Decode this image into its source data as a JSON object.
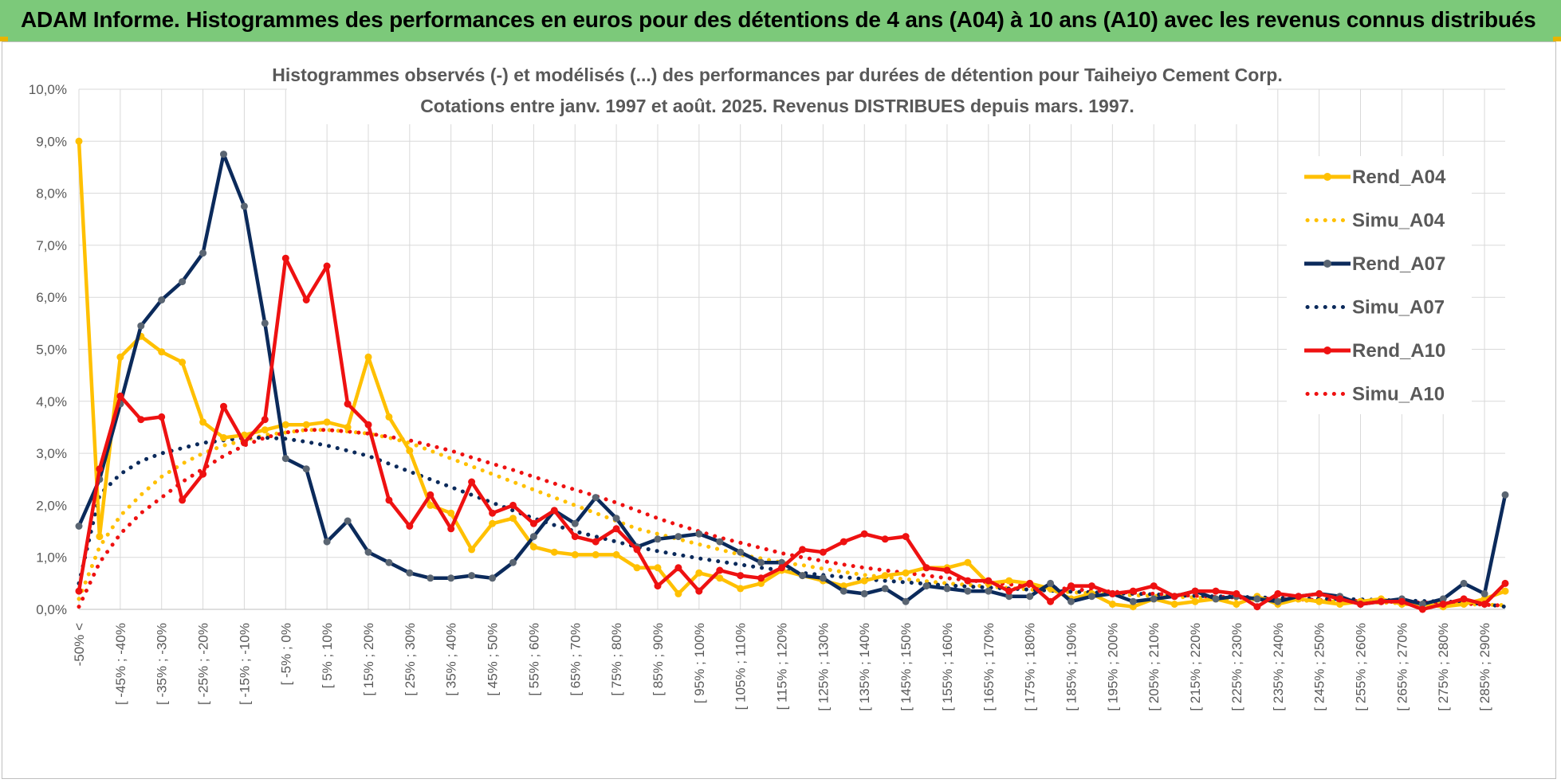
{
  "banner": {
    "title": "ADAM Informe. Histogrammes des performances en euros pour des détentions de 4 ans (A04) à 10 ans (A10) avec les revenus connus distribués"
  },
  "colors": {
    "banner_bg": "#7CC97A",
    "A04": "#FFC000",
    "A07": "#0B2A5B",
    "A07_marker": "#5A6572",
    "A10": "#EE1111",
    "grid": "#D9D9D9"
  },
  "chart_data": {
    "type": "line",
    "title_line1": "Histogrammes observés (-) et modélisés (...) des performances par durées de détention pour Taiheiyo Cement Corp.",
    "title_line2": "Cotations entre janv. 1997 et août. 2025. Revenus DISTRIBUES depuis mars. 1997.",
    "ylim": [
      0,
      10
    ],
    "y_ticks": [
      "0,0%",
      "1,0%",
      "2,0%",
      "3,0%",
      "4,0%",
      "5,0%",
      "6,0%",
      "7,0%",
      "8,0%",
      "9,0%",
      "10,0%"
    ],
    "x_tick_labels": [
      "-50% <",
      "[ -45% ; -40%",
      "[ -35% ; -30%",
      "[ -25% ; -20%",
      "[ -15% ; -10%",
      "[ -5% ; 0%",
      "[ 5% ; 10%",
      "[ 15% ; 20%",
      "[ 25% ; 30%",
      "[ 35% ; 40%",
      "[ 45% ; 50%",
      "[ 55% ; 60%",
      "[ 65% ; 70%",
      "[ 75% ; 80%",
      "[ 85% ; 90%",
      "[ 95% ; 100%",
      "[ 105% ; 110%",
      "[ 115% ; 120%",
      "[ 125% ; 130%",
      "[ 135% ; 140%",
      "[ 145% ; 150%",
      "[ 155% ; 160%",
      "[ 165% ; 170%",
      "[ 175% ; 180%",
      "[ 185% ; 190%",
      "[ 195% ; 200%",
      "[ 205% ; 210%",
      "[ 215% ; 220%",
      "[ 225% ; 230%",
      "[ 235% ; 240%",
      "[ 245% ; 250%",
      "[ 255% ; 260%",
      "[ 265% ; 270%",
      "[ 275% ; 280%",
      "[ 285% ; 290%"
    ],
    "legend_position": "right",
    "grid": true,
    "series": [
      {
        "name": "Rend_A04",
        "style": "solid",
        "color": "#FFC000",
        "values": [
          9.0,
          1.4,
          4.85,
          5.25,
          4.95,
          4.75,
          3.6,
          3.3,
          3.35,
          3.45,
          3.55,
          3.55,
          3.6,
          3.5,
          4.85,
          3.7,
          3.05,
          2.0,
          1.85,
          1.15,
          1.65,
          1.75,
          1.2,
          1.1,
          1.05,
          1.05,
          1.05,
          0.8,
          0.8,
          0.3,
          0.7,
          0.6,
          0.4,
          0.5,
          0.75,
          0.65,
          0.55,
          0.45,
          0.55,
          0.65,
          0.7,
          0.8,
          0.8,
          0.9,
          0.5,
          0.55,
          0.5,
          0.4,
          0.2,
          0.3,
          0.1,
          0.05,
          0.2,
          0.1,
          0.15,
          0.2,
          0.1,
          0.25,
          0.1,
          0.2,
          0.15,
          0.1,
          0.15,
          0.2,
          0.1,
          0.1,
          0.05,
          0.1,
          0.2,
          0.35
        ]
      },
      {
        "name": "Simu_A04",
        "style": "dotted",
        "color": "#FFC000",
        "values": [
          0.2,
          1.2,
          1.8,
          2.2,
          2.55,
          2.8,
          3.0,
          3.15,
          3.25,
          3.35,
          3.4,
          3.45,
          3.45,
          3.42,
          3.38,
          3.3,
          3.2,
          3.05,
          2.9,
          2.75,
          2.6,
          2.45,
          2.3,
          2.15,
          2.0,
          1.85,
          1.7,
          1.55,
          1.45,
          1.35,
          1.25,
          1.15,
          1.05,
          0.98,
          0.9,
          0.85,
          0.78,
          0.72,
          0.66,
          0.62,
          0.58,
          0.54,
          0.5,
          0.47,
          0.44,
          0.41,
          0.38,
          0.36,
          0.33,
          0.31,
          0.29,
          0.27,
          0.26,
          0.24,
          0.23,
          0.21,
          0.2,
          0.19,
          0.18,
          0.17,
          0.16,
          0.15,
          0.14,
          0.13,
          0.12,
          0.12,
          0.11,
          0.1,
          0.09,
          0.08
        ]
      },
      {
        "name": "Rend_A07",
        "style": "solid",
        "color": "#0B2A5B",
        "values": [
          1.6,
          2.5,
          3.95,
          5.45,
          5.95,
          6.3,
          6.85,
          8.75,
          7.75,
          5.5,
          2.9,
          2.7,
          1.3,
          1.7,
          1.1,
          0.9,
          0.7,
          0.6,
          0.6,
          0.65,
          0.6,
          0.9,
          1.4,
          1.9,
          1.65,
          2.15,
          1.75,
          1.2,
          1.35,
          1.4,
          1.45,
          1.3,
          1.1,
          0.9,
          0.9,
          0.65,
          0.6,
          0.35,
          0.3,
          0.4,
          0.15,
          0.45,
          0.4,
          0.35,
          0.35,
          0.25,
          0.25,
          0.5,
          0.15,
          0.25,
          0.3,
          0.15,
          0.2,
          0.25,
          0.35,
          0.2,
          0.25,
          0.2,
          0.15,
          0.25,
          0.3,
          0.25,
          0.1,
          0.15,
          0.2,
          0.1,
          0.2,
          0.5,
          0.3,
          2.2
        ]
      },
      {
        "name": "Simu_A07",
        "style": "dotted",
        "color": "#0B2A5B",
        "values": [
          0.5,
          2.2,
          2.6,
          2.85,
          3.0,
          3.1,
          3.2,
          3.25,
          3.3,
          3.3,
          3.28,
          3.22,
          3.15,
          3.05,
          2.95,
          2.8,
          2.65,
          2.5,
          2.35,
          2.2,
          2.05,
          1.9,
          1.75,
          1.62,
          1.5,
          1.4,
          1.3,
          1.2,
          1.12,
          1.05,
          0.98,
          0.92,
          0.86,
          0.8,
          0.75,
          0.7,
          0.66,
          0.62,
          0.58,
          0.55,
          0.52,
          0.49,
          0.46,
          0.44,
          0.42,
          0.4,
          0.38,
          0.36,
          0.34,
          0.33,
          0.31,
          0.3,
          0.29,
          0.27,
          0.26,
          0.25,
          0.24,
          0.23,
          0.22,
          0.21,
          0.2,
          0.2,
          0.19,
          0.18,
          0.17,
          0.16,
          0.15,
          0.14,
          0.1,
          0.05
        ]
      },
      {
        "name": "Rend_A10",
        "style": "solid",
        "color": "#EE1111",
        "values": [
          0.35,
          2.7,
          4.1,
          3.65,
          3.7,
          2.1,
          2.6,
          3.9,
          3.2,
          3.65,
          6.75,
          5.95,
          6.6,
          3.95,
          3.55,
          2.1,
          1.6,
          2.2,
          1.55,
          2.45,
          1.85,
          2.0,
          1.65,
          1.9,
          1.4,
          1.3,
          1.55,
          1.15,
          0.45,
          0.8,
          0.35,
          0.75,
          0.65,
          0.6,
          0.8,
          1.15,
          1.1,
          1.3,
          1.45,
          1.35,
          1.4,
          0.8,
          0.75,
          0.55,
          0.55,
          0.35,
          0.5,
          0.15,
          0.45,
          0.45,
          0.3,
          0.35,
          0.45,
          0.25,
          0.35,
          0.35,
          0.3,
          0.05,
          0.3,
          0.25,
          0.3,
          0.2,
          0.1,
          0.15,
          0.15,
          0.0,
          0.1,
          0.2,
          0.1,
          0.5
        ]
      },
      {
        "name": "Simu_A10",
        "style": "dotted",
        "color": "#EE1111",
        "values": [
          0.05,
          0.9,
          1.45,
          1.85,
          2.15,
          2.45,
          2.7,
          2.95,
          3.15,
          3.3,
          3.4,
          3.45,
          3.45,
          3.42,
          3.38,
          3.32,
          3.25,
          3.15,
          3.05,
          2.92,
          2.8,
          2.68,
          2.55,
          2.42,
          2.3,
          2.18,
          2.05,
          1.9,
          1.75,
          1.62,
          1.5,
          1.38,
          1.28,
          1.18,
          1.08,
          1.0,
          0.93,
          0.86,
          0.8,
          0.75,
          0.7,
          0.65,
          0.6,
          0.56,
          0.52,
          0.48,
          0.45,
          0.42,
          0.39,
          0.36,
          0.34,
          0.32,
          0.3,
          0.28,
          0.26,
          0.24,
          0.23,
          0.21,
          0.2,
          0.19,
          0.18,
          0.17,
          0.16,
          0.15,
          0.14,
          0.13,
          0.12,
          0.11,
          0.09,
          0.07
        ]
      }
    ]
  }
}
